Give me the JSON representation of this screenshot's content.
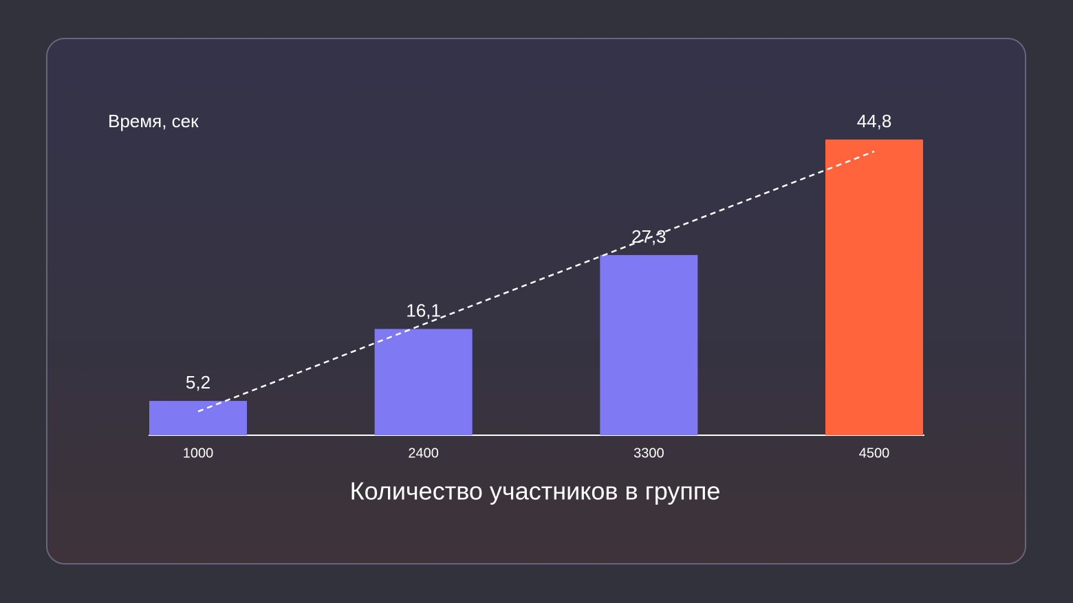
{
  "chart_data": {
    "type": "bar",
    "y_label": "Время, сек",
    "x_label": "Количество участников в группе",
    "categories": [
      "1000",
      "2400",
      "3300",
      "4500"
    ],
    "values": [
      5.2,
      16.1,
      27.3,
      44.8
    ],
    "value_labels": [
      "5,2",
      "16,1",
      "27,3",
      "44,8"
    ],
    "colors": [
      "#7f79f4",
      "#7f79f4",
      "#7f79f4",
      "#ff643d"
    ],
    "trend_values": [
      3.6,
      16.8,
      29.9,
      43.0
    ],
    "ylim": [
      0,
      50
    ],
    "grid": false
  }
}
